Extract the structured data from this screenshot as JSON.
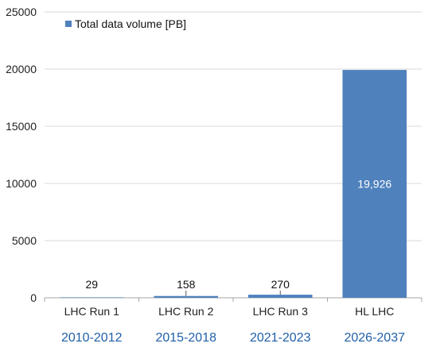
{
  "chart_data": {
    "type": "bar",
    "categories": [
      "LHC Run 1",
      "LHC Run 2",
      "LHC Run 3",
      "HL LHC"
    ],
    "periods": [
      "2010-2012",
      "2015-2018",
      "2021-2023",
      "2026-2037"
    ],
    "series": [
      {
        "name": "Total data volume [PB]",
        "values": [
          29,
          158,
          270,
          19926
        ],
        "data_labels": [
          "29",
          "158",
          "270",
          "19,926"
        ]
      }
    ],
    "yticks": [
      "0",
      "5000",
      "10000",
      "15000",
      "20000",
      "25000"
    ],
    "ylim": [
      0,
      25000
    ],
    "grid": true,
    "legend_position": "top-left",
    "colors": {
      "bar": "#4f81bd",
      "period_text": "#1f5fa8",
      "grid": "#d9d9d9",
      "axis": "#a6a6a6"
    }
  }
}
